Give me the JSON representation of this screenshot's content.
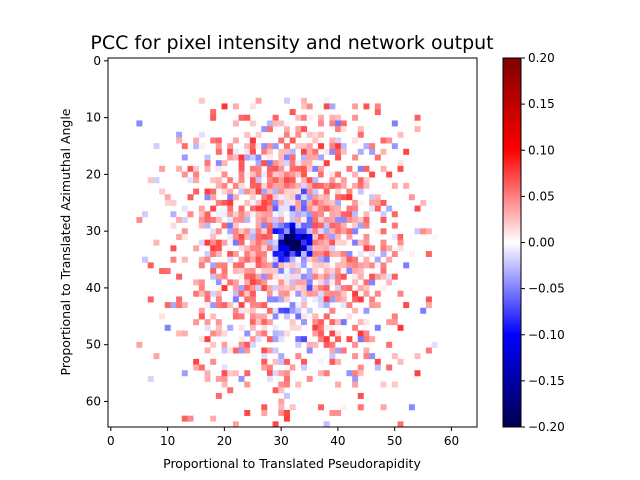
{
  "chart_data": {
    "type": "heatmap",
    "title": "PCC for pixel intensity and network output",
    "xlabel": "Proportional to Translated Pseudorapidity",
    "ylabel": "Proportional to Translated Azimuthal Angle",
    "grid_size": [
      65,
      65
    ],
    "xlim": [
      -0.5,
      64.5
    ],
    "ylim": [
      64.5,
      -0.5
    ],
    "y_inverted": true,
    "xticks": [
      0,
      10,
      20,
      30,
      40,
      50,
      60
    ],
    "yticks": [
      0,
      10,
      20,
      30,
      40,
      50,
      60
    ],
    "grid": false,
    "colormap": "seismic",
    "colormap_stops": [
      "#00004c",
      "#0000ff",
      "#ffffff",
      "#ff0000",
      "#7f0000"
    ],
    "colorbar": {
      "range": [
        -0.2,
        0.2
      ],
      "ticks": [
        0.2,
        0.15,
        0.1,
        0.05,
        0.0,
        -0.05,
        -0.1,
        -0.15,
        -0.2
      ],
      "tick_labels": [
        "0.20",
        "0.15",
        "0.10",
        "0.05",
        "0.00",
        "−0.05",
        "−0.10",
        "−0.15",
        "−0.20"
      ]
    },
    "value_summary": {
      "min": -0.2,
      "max": 0.12,
      "region_x": [
        5,
        57
      ],
      "region_y": [
        7,
        64
      ],
      "strong_negative_core_center": [
        32,
        32
      ],
      "negative_column_x": [
        29,
        35
      ],
      "positive_ring": "mostly positive around the core"
    }
  }
}
